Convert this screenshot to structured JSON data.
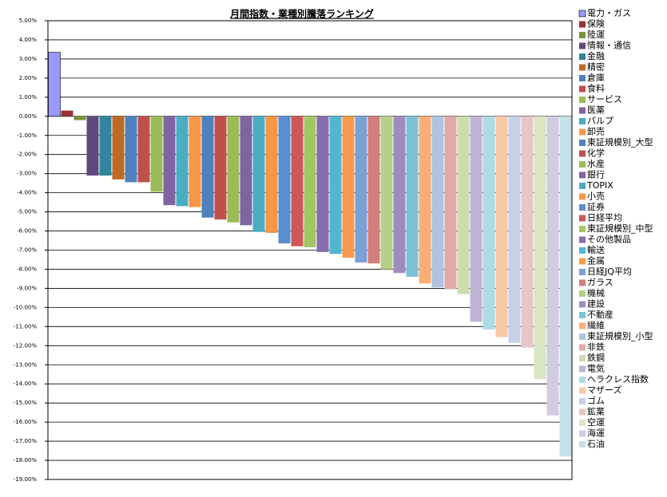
{
  "chart_data": {
    "type": "bar",
    "title": "月間指数・業種別騰落ランキング",
    "ylim": [
      -19,
      5
    ],
    "yticks": [
      {
        "value": 5,
        "label": "5.00%"
      },
      {
        "value": 4,
        "label": "4.00%"
      },
      {
        "value": 3,
        "label": "3.00%"
      },
      {
        "value": 2,
        "label": "2.00%"
      },
      {
        "value": 1,
        "label": "1.00%"
      },
      {
        "value": 0,
        "label": "0.00%"
      },
      {
        "value": -1,
        "label": "-1.00%"
      },
      {
        "value": -2,
        "label": "-2.00%"
      },
      {
        "value": -3,
        "label": "-3.00%"
      },
      {
        "value": -4,
        "label": "-4.00%"
      },
      {
        "value": -5,
        "label": "-5.00%"
      },
      {
        "value": -6,
        "label": "-6.00%"
      },
      {
        "value": -7,
        "label": "-7.00%"
      },
      {
        "value": -8,
        "label": "-8.00%"
      },
      {
        "value": -9,
        "label": "-9.00%"
      },
      {
        "value": -10,
        "label": "-10.00%"
      },
      {
        "value": -11,
        "label": "-11.00%"
      },
      {
        "value": -12,
        "label": "-12.00%"
      },
      {
        "value": -13,
        "label": "-13.00%"
      },
      {
        "value": -14,
        "label": "-14.00%"
      },
      {
        "value": -15,
        "label": "-15.00%"
      },
      {
        "value": -16,
        "label": "-16.00%"
      },
      {
        "value": -17,
        "label": "-17.00%"
      },
      {
        "value": -18,
        "label": "-18.00%"
      },
      {
        "value": -19,
        "label": "-19.00%"
      }
    ],
    "grid": true,
    "legend": "right",
    "series": [
      {
        "name": "電力・ガス",
        "color": "#9999ff",
        "values": [
          3.35
        ]
      },
      {
        "name": "保険",
        "color": "#993333",
        "values": [
          0.3
        ]
      },
      {
        "name": "陸運",
        "color": "#77933c",
        "values": [
          -0.2
        ]
      },
      {
        "name": "情報・通信",
        "color": "#604a7b",
        "values": [
          -3.1
        ]
      },
      {
        "name": "金融",
        "color": "#31859c",
        "values": [
          -3.1
        ]
      },
      {
        "name": "精密",
        "color": "#c06a28",
        "values": [
          -3.3
        ]
      },
      {
        "name": "倉庫",
        "color": "#4f81bd",
        "values": [
          -3.45
        ]
      },
      {
        "name": "食料",
        "color": "#c0504d",
        "values": [
          -3.45
        ]
      },
      {
        "name": "サービス",
        "color": "#9bbb59",
        "values": [
          -3.95
        ]
      },
      {
        "name": "医薬",
        "color": "#8064a2",
        "values": [
          -4.65
        ]
      },
      {
        "name": "パルプ",
        "color": "#4bacc6",
        "values": [
          -4.7
        ]
      },
      {
        "name": "卸売",
        "color": "#f79646",
        "values": [
          -4.75
        ]
      },
      {
        "name": "東証規模別_大型",
        "color": "#4f81bd",
        "values": [
          -5.3
        ]
      },
      {
        "name": "化学",
        "color": "#c0504d",
        "values": [
          -5.4
        ]
      },
      {
        "name": "水産",
        "color": "#9bbb59",
        "values": [
          -5.55
        ]
      },
      {
        "name": "銀行",
        "color": "#8064a2",
        "values": [
          -5.7
        ]
      },
      {
        "name": "TOPIX",
        "color": "#4bacc6",
        "values": [
          -6.05
        ]
      },
      {
        "name": "小売",
        "color": "#f79646",
        "values": [
          -6.1
        ]
      },
      {
        "name": "証券",
        "color": "#5a8ed0",
        "values": [
          -6.65
        ]
      },
      {
        "name": "日経平均",
        "color": "#cd5856",
        "values": [
          -6.8
        ]
      },
      {
        "name": "東証規模別_中型",
        "color": "#a3c664",
        "values": [
          -6.85
        ]
      },
      {
        "name": "その他製品",
        "color": "#886cad",
        "values": [
          -7.1
        ]
      },
      {
        "name": "輸送",
        "color": "#52b6d1",
        "values": [
          -7.2
        ]
      },
      {
        "name": "金属",
        "color": "#f79a4d",
        "values": [
          -7.4
        ]
      },
      {
        "name": "日経JQ平均",
        "color": "#7ba0d6",
        "values": [
          -7.65
        ]
      },
      {
        "name": "ガラス",
        "color": "#d27e7c",
        "values": [
          -7.7
        ]
      },
      {
        "name": "機械",
        "color": "#b6d088",
        "values": [
          -8.0
        ]
      },
      {
        "name": "建設",
        "color": "#a08bbf",
        "values": [
          -8.2
        ]
      },
      {
        "name": "不動産",
        "color": "#7cc3d8",
        "values": [
          -8.4
        ]
      },
      {
        "name": "繊維",
        "color": "#f9ae76",
        "values": [
          -8.75
        ]
      },
      {
        "name": "東証規模別_小型",
        "color": "#b0c3e3",
        "values": [
          -8.95
        ]
      },
      {
        "name": "非鉄",
        "color": "#e0aaa9",
        "values": [
          -9.05
        ]
      },
      {
        "name": "鉄鋼",
        "color": "#cbdcae",
        "values": [
          -9.3
        ]
      },
      {
        "name": "電気",
        "color": "#c0b4d6",
        "values": [
          -10.75
        ]
      },
      {
        "name": "ヘラクレス指数",
        "color": "#addbe6",
        "values": [
          -11.15
        ]
      },
      {
        "name": "マザーズ",
        "color": "#fbc8a4",
        "values": [
          -11.55
        ]
      },
      {
        "name": "ゴム",
        "color": "#c6d0e6",
        "values": [
          -11.85
        ]
      },
      {
        "name": "鉱業",
        "color": "#e8c6c5",
        "values": [
          -12.1
        ]
      },
      {
        "name": "空運",
        "color": "#d9e6c4",
        "values": [
          -13.75
        ]
      },
      {
        "name": "海運",
        "color": "#d3cbe0",
        "values": [
          -15.65
        ]
      },
      {
        "name": "石油",
        "color": "#c5e1e8",
        "values": [
          -17.8
        ]
      }
    ]
  }
}
